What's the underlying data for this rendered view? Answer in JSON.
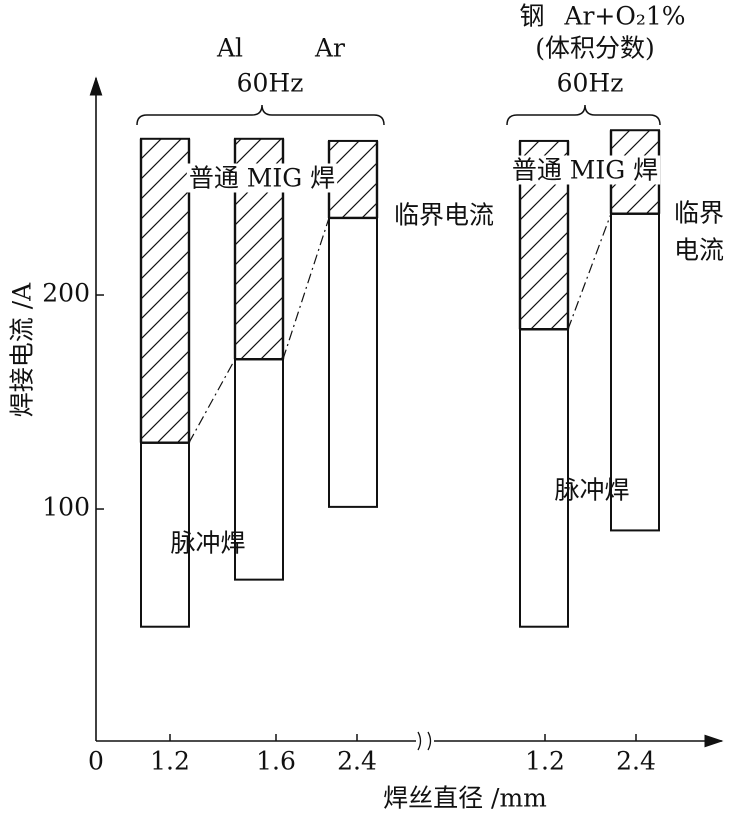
{
  "chart_data": {
    "type": "floating-bar",
    "y_label": "焊接电流 /A",
    "x_label": "焊丝直径 /mm",
    "origin_label": "0",
    "ylim": [
      -8.4,
      295.8
    ],
    "yticks": [
      100,
      200
    ],
    "groups": [
      {
        "header": [
          "Al",
          "Ar"
        ],
        "frequency": "60Hz",
        "categories": [
          "1.2",
          "1.6",
          "2.4"
        ],
        "low": [
          45,
          67,
          101
        ],
        "critical": [
          131,
          170,
          236
        ],
        "high": [
          273,
          273,
          272
        ],
        "normal_label": "普通 MIG 焊",
        "critical_label": [
          "临界电流"
        ],
        "pulse_label": "脉冲焊"
      },
      {
        "header": [
          "钢",
          "Ar+O₂1%",
          "(体积分数)"
        ],
        "frequency": "60Hz",
        "categories": [
          "1.2",
          "2.4"
        ],
        "low": [
          45,
          90
        ],
        "critical": [
          184,
          238
        ],
        "high": [
          272,
          277
        ],
        "normal_label": "普通 MIG 焊",
        "critical_label": [
          "临界",
          "电流"
        ],
        "pulse_label": "脉冲焊"
      }
    ]
  }
}
